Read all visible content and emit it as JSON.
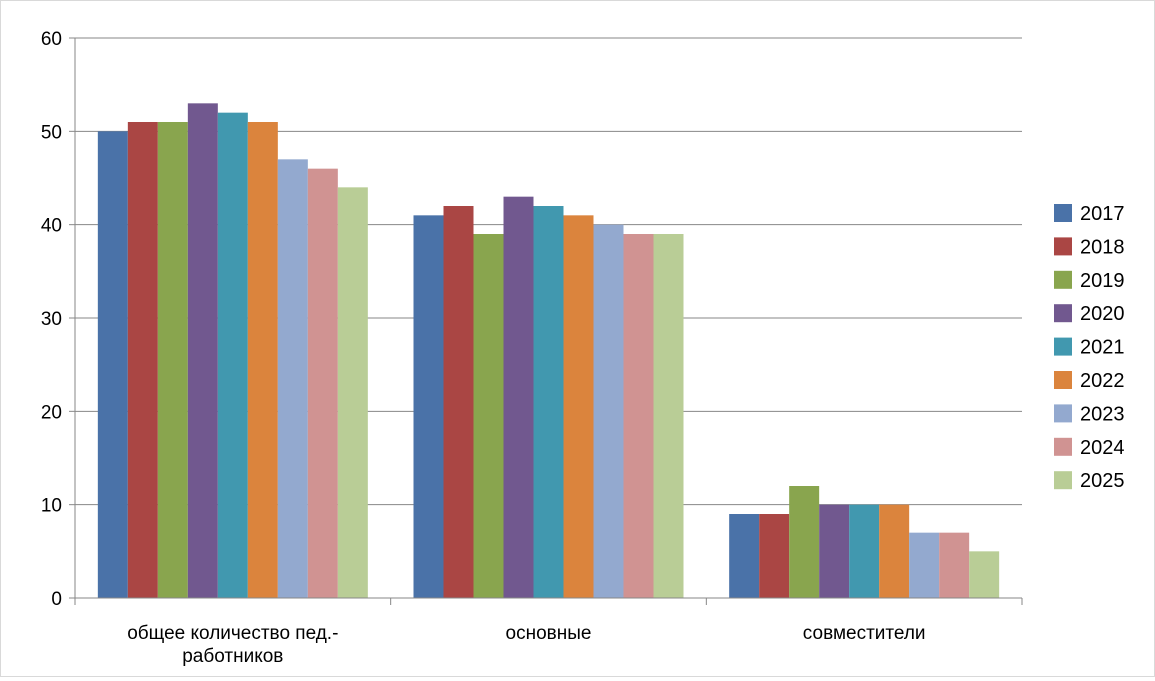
{
  "chart_data": {
    "type": "bar",
    "title": "",
    "xlabel": "",
    "ylabel": "",
    "ylim": [
      0,
      60
    ],
    "yticks": [
      0,
      10,
      20,
      30,
      40,
      50,
      60
    ],
    "grid": true,
    "legend_position": "right",
    "categories": [
      "общее количество пед.-работников",
      "основные",
      "совместители"
    ],
    "category_label_lines": [
      [
        "общее количество пед.-",
        "работников"
      ],
      [
        "основные"
      ],
      [
        "совместители"
      ]
    ],
    "series": [
      {
        "name": "2017",
        "color": "#4A72A8",
        "values": [
          50,
          41,
          9
        ]
      },
      {
        "name": "2018",
        "color": "#AA4644",
        "values": [
          51,
          42,
          9
        ]
      },
      {
        "name": "2019",
        "color": "#89A54E",
        "values": [
          51,
          39,
          12
        ]
      },
      {
        "name": "2020",
        "color": "#71588F",
        "values": [
          53,
          43,
          10
        ]
      },
      {
        "name": "2021",
        "color": "#4198AF",
        "values": [
          52,
          42,
          10
        ]
      },
      {
        "name": "2022",
        "color": "#DB843D",
        "values": [
          51,
          41,
          10
        ]
      },
      {
        "name": "2023",
        "color": "#93A9CF",
        "values": [
          47,
          40,
          7
        ]
      },
      {
        "name": "2024",
        "color": "#D09392",
        "values": [
          46,
          39,
          7
        ]
      },
      {
        "name": "2025",
        "color": "#B9CD96",
        "values": [
          44,
          39,
          5
        ]
      }
    ]
  }
}
